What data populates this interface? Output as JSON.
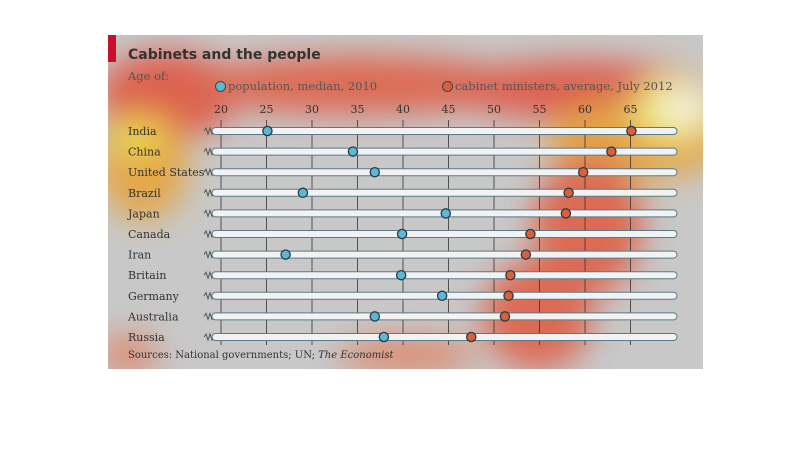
{
  "chart_data": {
    "type": "scatter",
    "title": "Cabinets and the people",
    "subtitle": "Age of:",
    "source_prefix": "Sources: National governments; UN; ",
    "source_italic": "The Economist",
    "x_ticks": [
      20,
      25,
      30,
      35,
      40,
      45,
      50,
      55,
      60,
      65
    ],
    "xlim": [
      19,
      70
    ],
    "grid": true,
    "legend_position": "top",
    "categories": [
      "India",
      "China",
      "United States",
      "Brazil",
      "Japan",
      "Canada",
      "Iran",
      "Britain",
      "Germany",
      "Australia",
      "Russia"
    ],
    "series": [
      {
        "name": "population, median, 2010",
        "color": "#5bb8d6",
        "values": [
          25.1,
          34.5,
          36.9,
          29.0,
          44.7,
          39.9,
          27.1,
          39.8,
          44.3,
          36.9,
          37.9
        ]
      },
      {
        "name": "cabinet ministers, average, July 2012",
        "color": "#d9603b",
        "values": [
          65.1,
          62.9,
          59.8,
          58.2,
          57.9,
          54.0,
          53.5,
          51.8,
          51.6,
          51.2,
          47.5
        ]
      }
    ],
    "colors": {
      "background": "#c8c8c8",
      "accent": "#c8102e",
      "bar_fill": "#f2f2f2",
      "bar_stroke": "#5a7a8a",
      "grid": "#333333"
    }
  }
}
